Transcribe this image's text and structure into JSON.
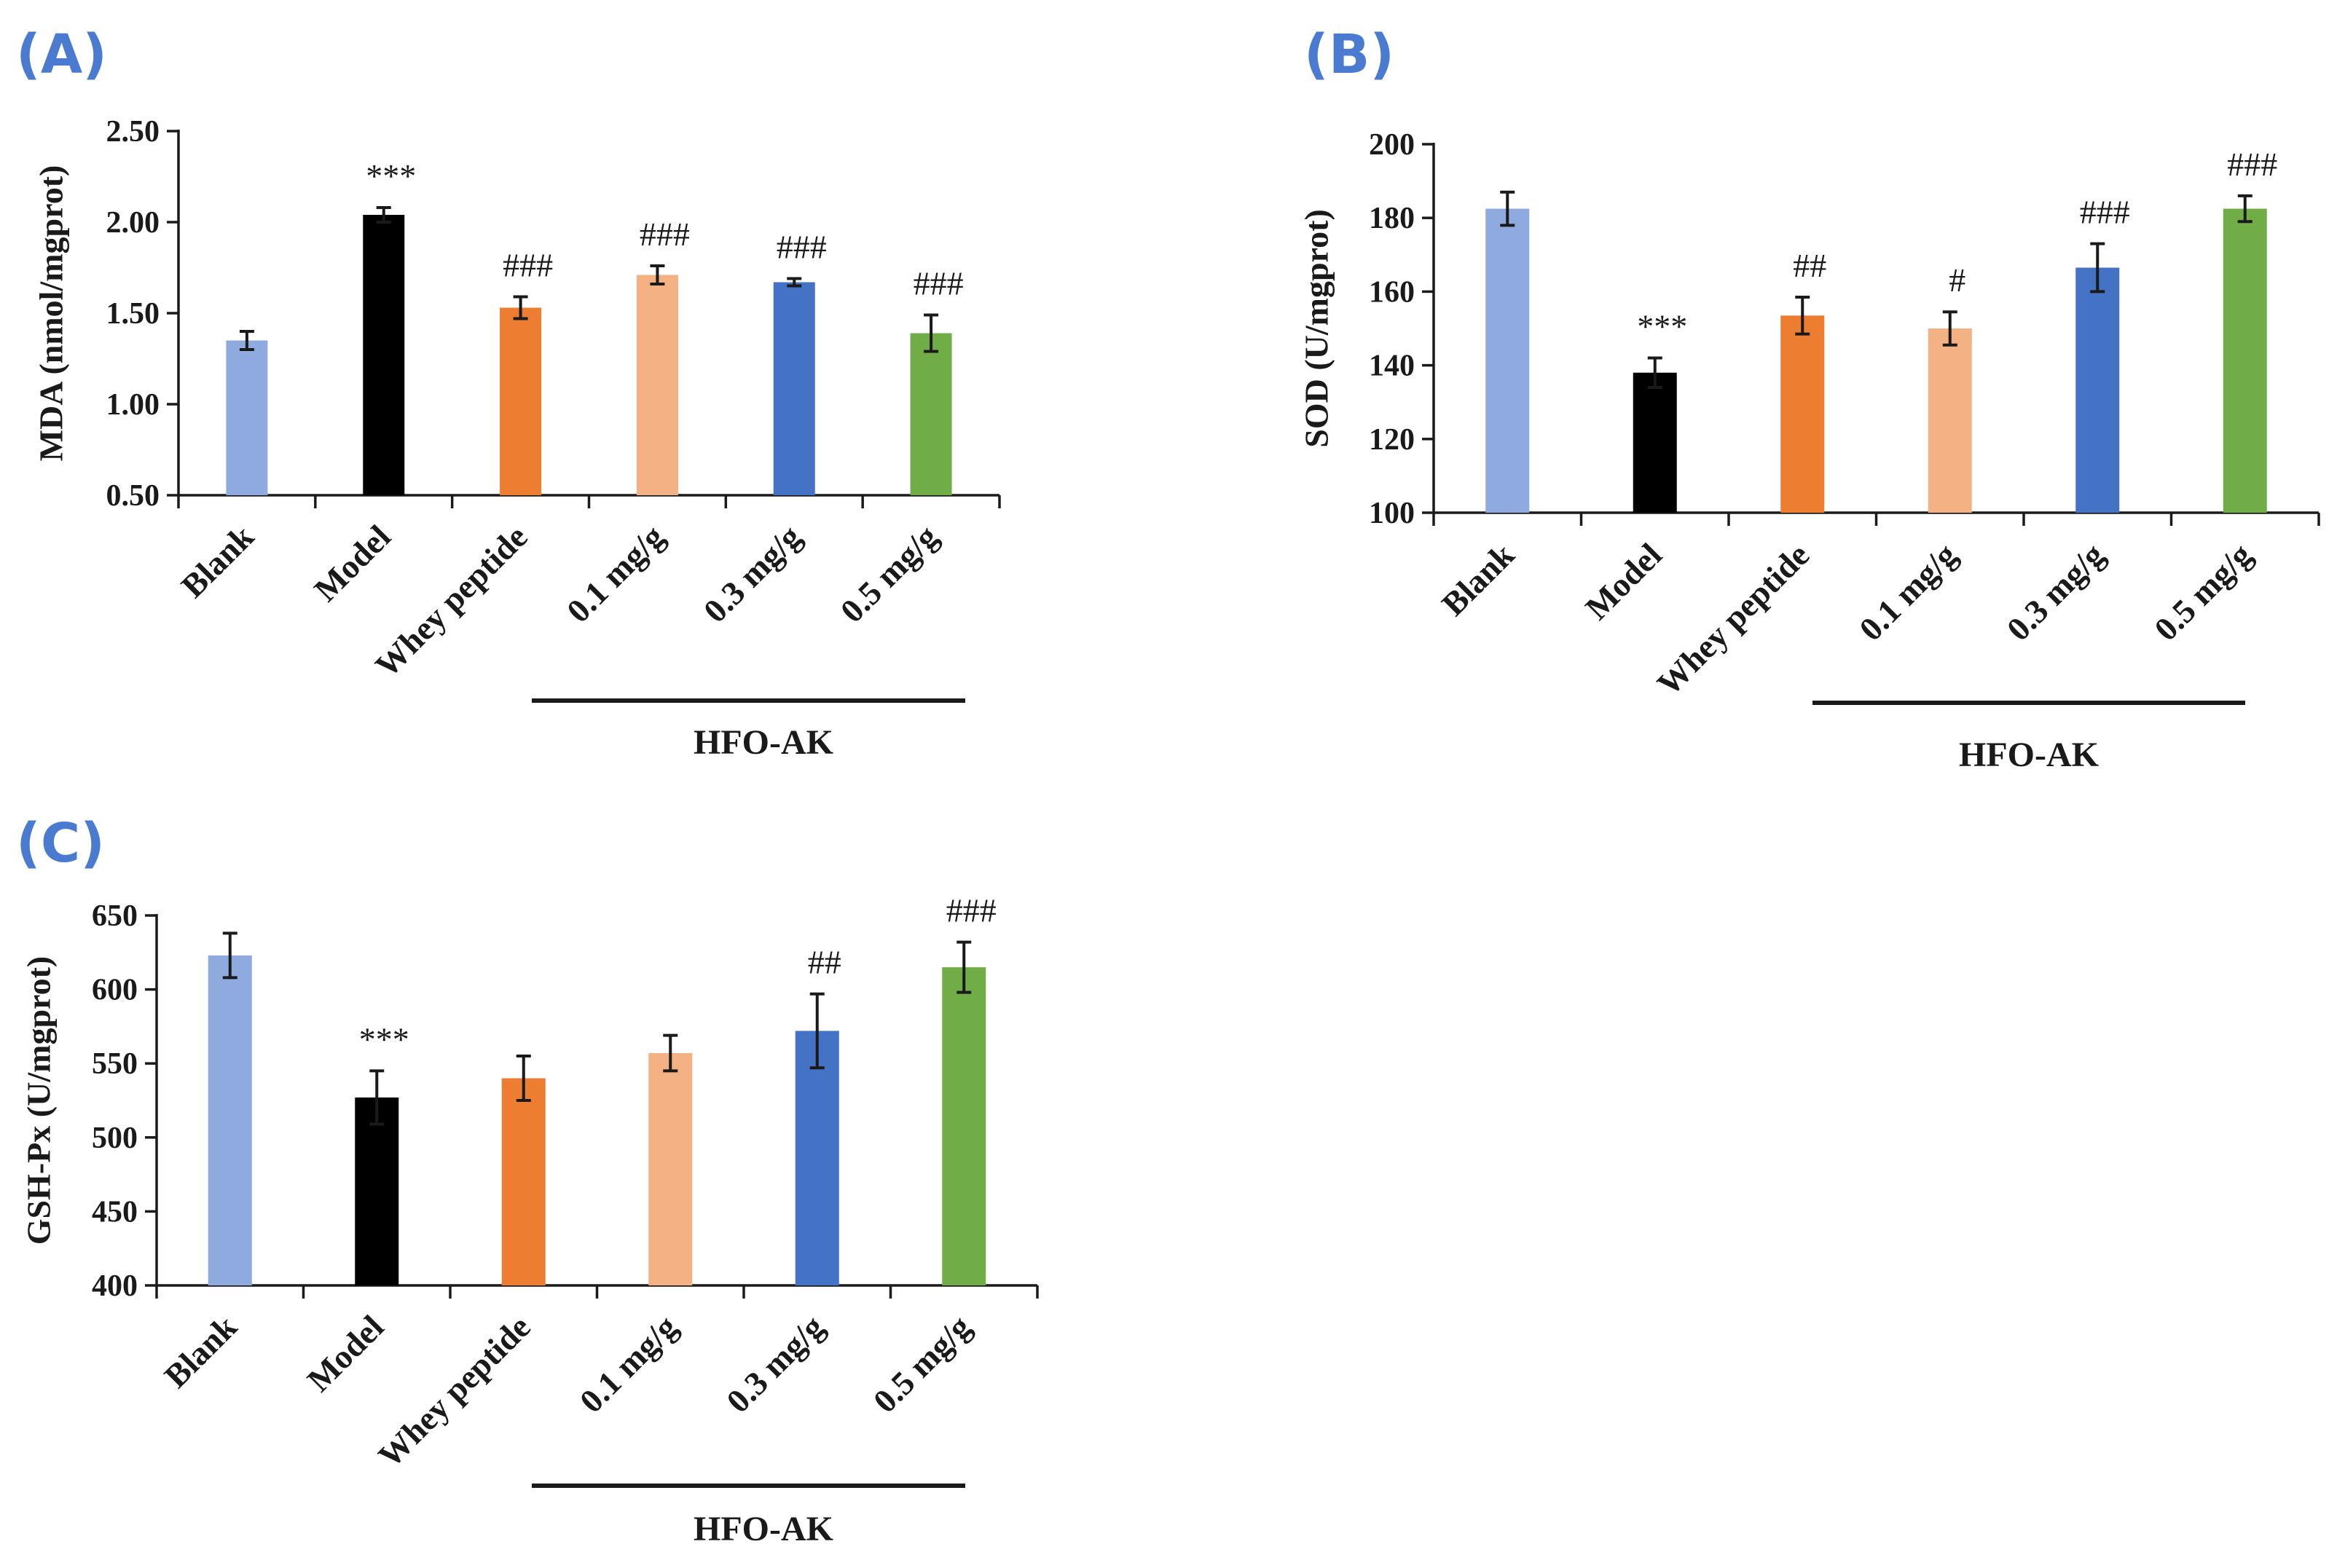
{
  "chart_data": [
    {
      "type": "bar",
      "panel": "(A)",
      "title": "",
      "xlabel": "",
      "ylabel": "MDA (nmol/mgprot)",
      "ylim": [
        0.5,
        2.5
      ],
      "yticks": [
        "0.50",
        "1.00",
        "1.50",
        "2.00",
        "2.50"
      ],
      "yticks_values": [
        0.5,
        1.0,
        1.5,
        2.0,
        2.5
      ],
      "categories": [
        "Blank",
        "Model",
        "Whey peptide",
        "0.1 mg/g",
        "0.3 mg/g",
        "0.5 mg/g"
      ],
      "values": [
        1.35,
        2.04,
        1.53,
        1.71,
        1.67,
        1.39
      ],
      "errors": [
        0.05,
        0.04,
        0.06,
        0.05,
        0.02,
        0.1
      ],
      "annotations": [
        "",
        "***",
        "###",
        "###",
        "###",
        "###"
      ],
      "colors": [
        "#8eaadf",
        "#000000",
        "#ed7d31",
        "#f4b183",
        "#4472c4",
        "#70ad47"
      ],
      "group_label": "HFO-AK"
    },
    {
      "type": "bar",
      "panel": "(B)",
      "title": "",
      "xlabel": "",
      "ylabel": "SOD (U/mgprot)",
      "ylim": [
        100,
        200
      ],
      "yticks": [
        "100",
        "120",
        "140",
        "160",
        "180",
        "200"
      ],
      "yticks_values": [
        100,
        120,
        140,
        160,
        180,
        200
      ],
      "categories": [
        "Blank",
        "Model",
        "Whey peptide",
        "0.1 mg/g",
        "0.3 mg/g",
        "0.5 mg/g"
      ],
      "values": [
        182.5,
        138.0,
        153.5,
        150.0,
        166.5,
        182.5
      ],
      "errors": [
        4.5,
        4.0,
        5.0,
        4.5,
        6.5,
        3.5
      ],
      "annotations": [
        "",
        "***",
        "##",
        "#",
        "###",
        "###"
      ],
      "colors": [
        "#8eaadf",
        "#000000",
        "#ed7d31",
        "#f4b183",
        "#4472c4",
        "#70ad47"
      ],
      "group_label": "HFO-AK"
    },
    {
      "type": "bar",
      "panel": "(C)",
      "title": "",
      "xlabel": "",
      "ylabel": "GSH-Px (U/mgprot)",
      "ylim": [
        400,
        650
      ],
      "yticks": [
        "400",
        "450",
        "500",
        "550",
        "600",
        "650"
      ],
      "yticks_values": [
        400,
        450,
        500,
        550,
        600,
        650
      ],
      "categories": [
        "Blank",
        "Model",
        "Whey peptide",
        "0.1 mg/g",
        "0.3 mg/g",
        "0.5 mg/g"
      ],
      "values": [
        623,
        527,
        540,
        557,
        572,
        615
      ],
      "errors": [
        15,
        18,
        15,
        12,
        25,
        17
      ],
      "annotations": [
        "",
        "***",
        "",
        "",
        "##",
        "###"
      ],
      "colors": [
        "#8eaadf",
        "#000000",
        "#ed7d31",
        "#f4b183",
        "#4472c4",
        "#70ad47"
      ],
      "group_label": "HFO-AK"
    }
  ]
}
